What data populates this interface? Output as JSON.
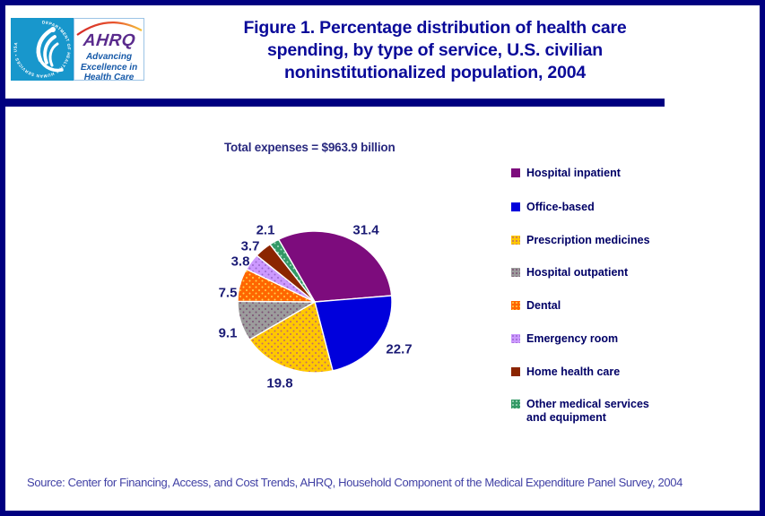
{
  "header": {
    "logo": {
      "hhs_ring_text": "DEPARTMENT OF HEALTH & HUMAN SERVICES • USA",
      "acronym": "AHRQ",
      "tagline_lines": [
        "Advancing",
        "Excellence in",
        "Health Care"
      ]
    },
    "title_lines": [
      "Figure 1. Percentage distribution of health care",
      "spending, by type of service, U.S. civilian",
      "noninstitutionalized population, 2004"
    ]
  },
  "chart_data": {
    "type": "pie",
    "total_label": "Total expenses = $963.9 billion",
    "legend_position": "right",
    "start_angle_deg": -28,
    "slices": [
      {
        "label": "Hospital inpatient",
        "value": 31.4,
        "color": "#7D0C7D",
        "dots": null
      },
      {
        "label": "Office-based",
        "value": 22.7,
        "color": "#0000DC",
        "dots": null
      },
      {
        "label": "Prescription medicines",
        "value": 19.8,
        "color": "#FFC800",
        "dots": "#C06A6A"
      },
      {
        "label": "Hospital outpatient",
        "value": 9.1,
        "color": "#9C9C9C",
        "dots": "#7A4E72"
      },
      {
        "label": "Dental",
        "value": 7.5,
        "color": "#FF6600",
        "dots": "#FFD24D"
      },
      {
        "label": "Emergency room",
        "value": 3.8,
        "color": "#CC99FF",
        "dots": "#9966CC"
      },
      {
        "label": "Home health care",
        "value": 3.7,
        "color": "#8B2500",
        "dots": null
      },
      {
        "label": "Other medical services and equipment",
        "value": 2.1,
        "color": "#339966",
        "dots": "#A8DCC2"
      }
    ]
  },
  "footer": {
    "source": "Source: Center for Financing, Access, and Cost Trends, AHRQ, Household Component of the Medical Expenditure Panel Survey, 2004"
  },
  "colors": {
    "border": "#000080",
    "title": "#0A0A99",
    "legend_text": "#000066",
    "source_text": "#4141A5"
  }
}
